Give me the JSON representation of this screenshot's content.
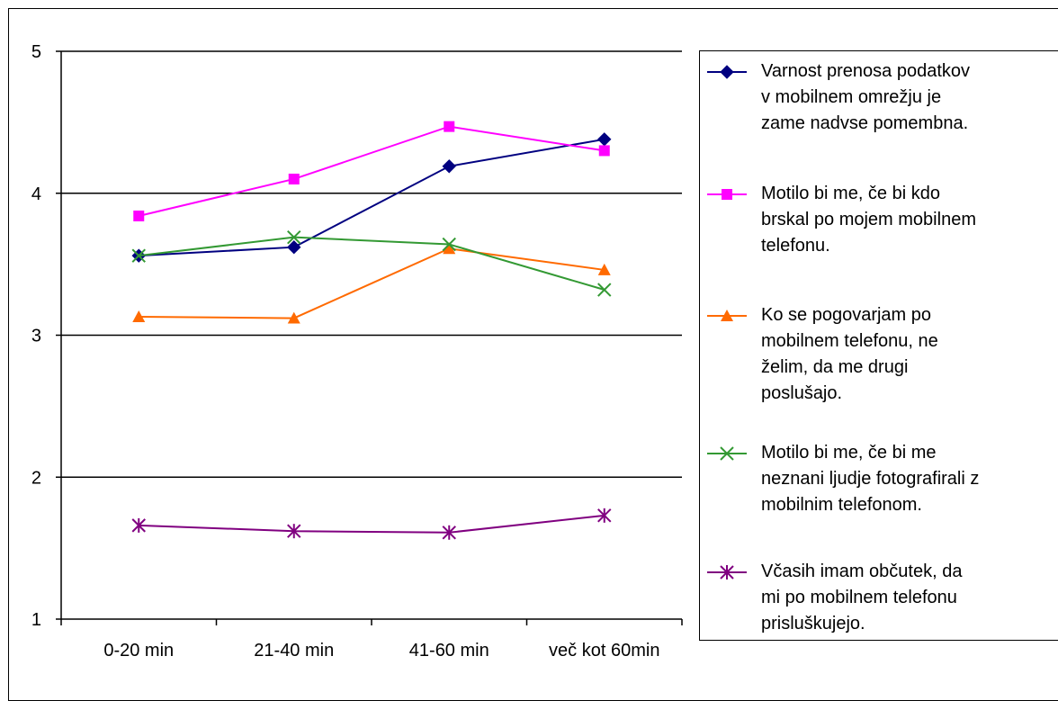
{
  "chart_data": {
    "type": "line",
    "categories": [
      "0-20 min",
      "21-40 min",
      "41-60 min",
      "več kot 60min"
    ],
    "ylim": [
      1,
      5
    ],
    "yticks": [
      "1",
      "2",
      "3",
      "4",
      "5"
    ],
    "grid": true,
    "legend_position": "right",
    "series": [
      {
        "name": "Varnost prenosa podatkov\nv mobilnem omrežju je\nzame nadvse pomembna.",
        "values": [
          3.56,
          3.62,
          4.19,
          4.38
        ],
        "color": "#000080",
        "marker": "diamond"
      },
      {
        "name": "Motilo bi me, če bi kdo\nbrskal po mojem mobilnem\ntelefonu.",
        "values": [
          3.84,
          4.1,
          4.47,
          4.3
        ],
        "color": "#ff00ff",
        "marker": "square"
      },
      {
        "name": "Ko se pogovarjam po\nmobilnem telefonu, ne\nželim, da me drugi\nposlušajo.",
        "values": [
          3.13,
          3.12,
          3.61,
          3.46
        ],
        "color": "#ff6a00",
        "marker": "triangle"
      },
      {
        "name": "Motilo bi me, če bi me\nneznani ljudje fotografirali z\nmobilnim telefonom.",
        "values": [
          3.56,
          3.69,
          3.64,
          3.32
        ],
        "color": "#339933",
        "marker": "x"
      },
      {
        "name": "Včasih imam občutek, da\nmi po mobilnem telefonu\nprisluškujejo.",
        "values": [
          1.66,
          1.62,
          1.61,
          1.73
        ],
        "color": "#800080",
        "marker": "star"
      }
    ]
  }
}
